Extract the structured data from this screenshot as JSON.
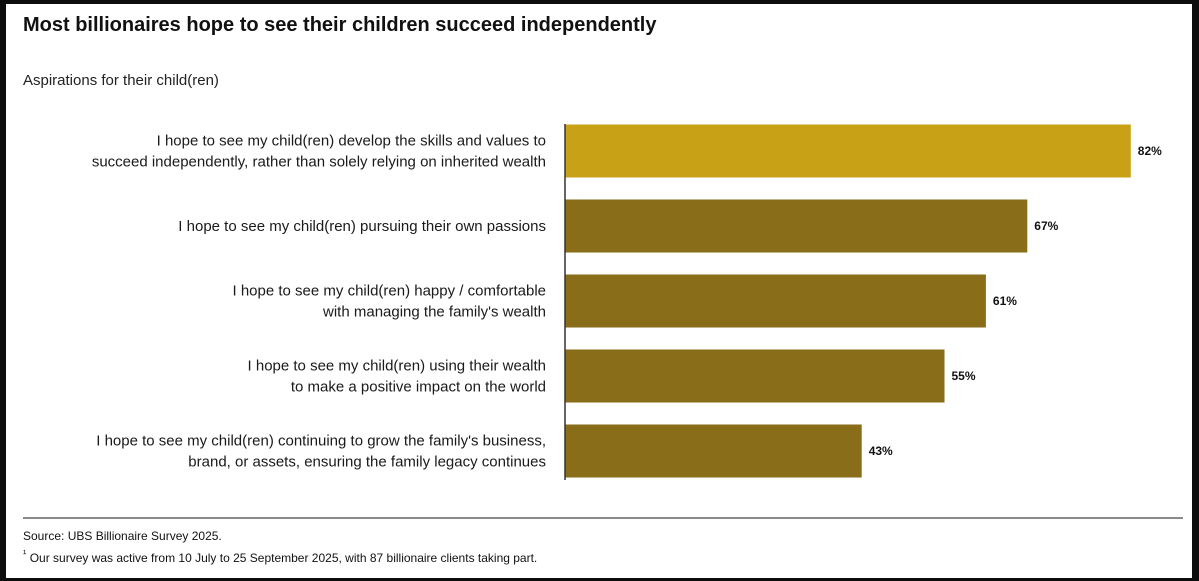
{
  "title": "Most billionaires hope to see their children succeed independently",
  "subtitle": "Aspirations for their child(ren)",
  "chart_data": {
    "type": "bar",
    "orientation": "horizontal",
    "categories": [
      [
        "I hope to see my child(ren) develop the skills and values to",
        "succeed independently, rather than solely relying on inherited wealth"
      ],
      [
        "I hope to see my child(ren) pursuing their own passions"
      ],
      [
        "I hope to see my child(ren) happy / comfortable",
        "with managing the family's wealth"
      ],
      [
        "I hope to see my child(ren) using their wealth",
        "to make a positive impact on the world"
      ],
      [
        "I hope to see my child(ren) continuing to grow the family's business,",
        "brand, or assets, ensuring the family legacy continues"
      ]
    ],
    "values": [
      82,
      67,
      61,
      55,
      43
    ],
    "value_labels": [
      "82%",
      "67%",
      "61%",
      "55%",
      "43%"
    ],
    "colors": [
      "#c8a116",
      "#8a6d18",
      "#8a6d18",
      "#8a6d18",
      "#8a6d18"
    ],
    "xlim": [
      0,
      100
    ],
    "grid": false,
    "legend": "none"
  },
  "footer": {
    "source": "Source: UBS Billionaire Survey 2025.",
    "note_marker": "¹",
    "note": "Our survey was active from 10 July to 25 September 2025, with 87 billionaire clients taking part."
  }
}
